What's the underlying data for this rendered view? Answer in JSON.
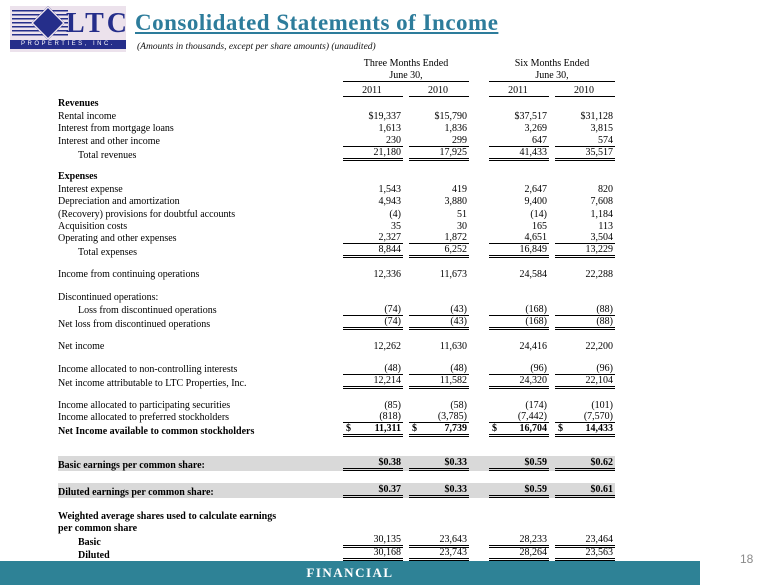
{
  "logo": {
    "text": "LTC",
    "subtext": "PROPERTIES, INC."
  },
  "header": {
    "title": "Consolidated Statements of Income",
    "subtitle": "(Amounts in thousands, except per share amounts) (unaudited)"
  },
  "table": {
    "col_groups": [
      {
        "line1": "Three Months Ended",
        "line2": "June 30,"
      },
      {
        "line1": "Six Months Ended",
        "line2": "June 30,"
      }
    ],
    "year_headers": [
      "2011",
      "2010",
      "2011",
      "2010"
    ],
    "rows": [
      {
        "label": "Revenues",
        "bold": true
      },
      {
        "label": "Rental income",
        "values": [
          "$19,337",
          "$15,790",
          "$37,517",
          "$31,128"
        ]
      },
      {
        "label": "Interest from mortgage loans",
        "values": [
          "1,613",
          "1,836",
          "3,269",
          "3,815"
        ]
      },
      {
        "label": "Interest and other income",
        "values": [
          "230",
          "299",
          "647",
          "574"
        ],
        "underline": "single"
      },
      {
        "label": "Total revenues",
        "indent": true,
        "values": [
          "21,180",
          "17,925",
          "41,433",
          "35,517"
        ],
        "underline": "double"
      },
      {
        "spacer": true,
        "h": 11
      },
      {
        "label": "Expenses",
        "bold": true
      },
      {
        "label": "Interest expense",
        "values": [
          "1,543",
          "419",
          "2,647",
          "820"
        ]
      },
      {
        "label": "Depreciation and amortization",
        "values": [
          "4,943",
          "3,880",
          "9,400",
          "7,608"
        ]
      },
      {
        "label": "(Recovery) provisions for doubtful accounts",
        "values": [
          "(4)",
          "51",
          "(14)",
          "1,184"
        ]
      },
      {
        "label": "Acquisition costs",
        "values": [
          "35",
          "30",
          "165",
          "113"
        ]
      },
      {
        "label": "Operating and other expenses",
        "values": [
          "2,327",
          "1,872",
          "4,651",
          "3,504"
        ],
        "underline": "single"
      },
      {
        "label": "Total expenses",
        "indent": true,
        "values": [
          "8,844",
          "6,252",
          "16,849",
          "13,229"
        ],
        "underline": "double"
      },
      {
        "spacer": true,
        "h": 11
      },
      {
        "label": "Income from continuing operations",
        "values": [
          "12,336",
          "11,673",
          "24,584",
          "22,288"
        ]
      },
      {
        "spacer": true,
        "h": 11
      },
      {
        "label": "Discontinued operations:"
      },
      {
        "label": "Loss from discontinued operations",
        "indent": true,
        "values": [
          "(74)",
          "(43)",
          "(168)",
          "(88)"
        ],
        "underline": "single"
      },
      {
        "label": "Net loss from discontinued operations",
        "values": [
          "(74)",
          "(43)",
          "(168)",
          "(88)"
        ],
        "underline": "double"
      },
      {
        "spacer": true,
        "h": 11
      },
      {
        "label": "Net income",
        "values": [
          "12,262",
          "11,630",
          "24,416",
          "22,200"
        ]
      },
      {
        "spacer": true,
        "h": 11
      },
      {
        "label": "Income allocated to non-controlling interests",
        "values": [
          "(48)",
          "(48)",
          "(96)",
          "(96)"
        ],
        "underline": "single"
      },
      {
        "label": "Net income attributable to LTC Properties, Inc.",
        "values": [
          "12,214",
          "11,582",
          "24,320",
          "22,104"
        ],
        "underline": "double"
      },
      {
        "spacer": true,
        "h": 11
      },
      {
        "label": "Income allocated to participating securities",
        "values": [
          "(85)",
          "(58)",
          "(174)",
          "(101)"
        ]
      },
      {
        "label": "Income allocated to preferred stockholders",
        "values": [
          "(818)",
          "(3,785)",
          "(7,442)",
          "(7,570)"
        ],
        "underline": "single"
      },
      {
        "label": "Net Income available to common stockholders",
        "bold": true,
        "bold_values": true,
        "dollar": true,
        "values": [
          "11,311",
          "7,739",
          "16,704",
          "14,433"
        ],
        "underline": "double"
      },
      {
        "spacer": true,
        "h": 20
      },
      {
        "label": "Basic earnings per common share:",
        "bold": true,
        "bold_values": true,
        "shaded": true,
        "values": [
          "$0.38",
          "$0.33",
          "$0.59",
          "$0.62"
        ],
        "underline": "double"
      },
      {
        "spacer": true,
        "h": 12
      },
      {
        "label": "Diluted earnings per common share:",
        "bold": true,
        "bold_values": true,
        "shaded": true,
        "values": [
          "$0.37",
          "$0.33",
          "$0.59",
          "$0.61"
        ],
        "underline": "double"
      },
      {
        "spacer": true,
        "h": 12
      },
      {
        "label": "Weighted average shares used to calculate earnings",
        "bold": true
      },
      {
        "label": "per common share",
        "bold": true
      },
      {
        "label": "Basic",
        "bold": true,
        "indent": true,
        "values": [
          "30,135",
          "23,643",
          "28,233",
          "23,464"
        ],
        "underline": "double"
      },
      {
        "label": "Diluted",
        "bold": true,
        "indent": true,
        "values": [
          "30,168",
          "23,743",
          "28,264",
          "23,563"
        ],
        "underline": "double"
      }
    ]
  },
  "footer": {
    "label": "FINANCIAL",
    "page_number": "18"
  }
}
